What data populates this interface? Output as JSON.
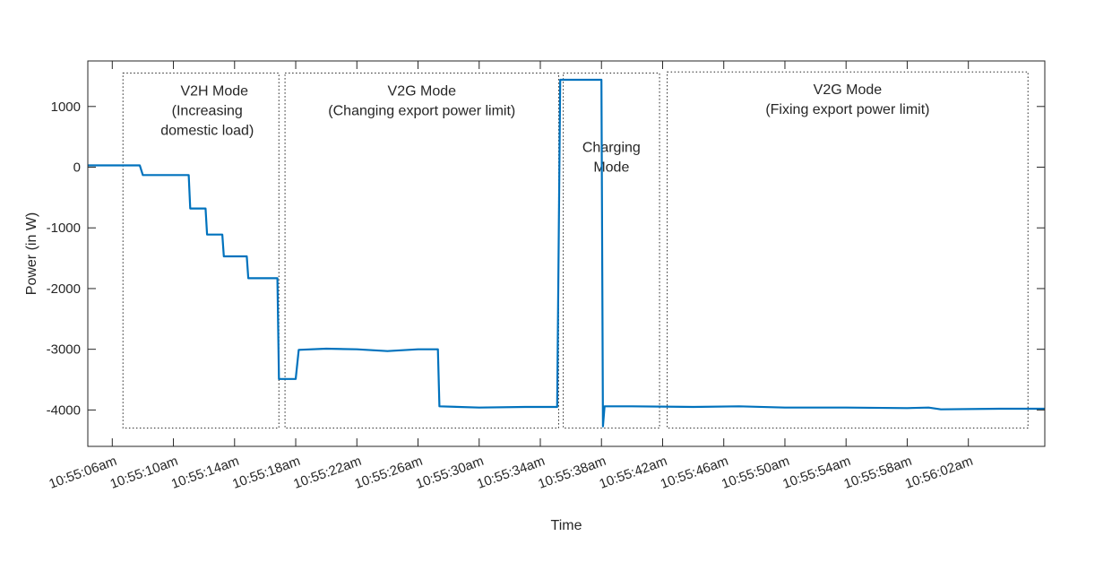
{
  "chart_data": {
    "type": "line",
    "xlabel": "Time",
    "ylabel": "Power (in W)",
    "x_range_seconds": [
      64.4,
      127.0
    ],
    "ylim": [
      -4600,
      1750
    ],
    "y_ticks": [
      1000,
      0,
      -1000,
      -2000,
      -3000,
      -4000
    ],
    "y_tick_labels": [
      "1000",
      "0",
      "-1000",
      "-2000",
      "-3000",
      "-4000"
    ],
    "x_ticks": [
      {
        "t": 66,
        "label": "10:55:06am"
      },
      {
        "t": 70,
        "label": "10:55:10am"
      },
      {
        "t": 74,
        "label": "10:55:14am"
      },
      {
        "t": 78,
        "label": "10:55:18am"
      },
      {
        "t": 82,
        "label": "10:55:22am"
      },
      {
        "t": 86,
        "label": "10:55:26am"
      },
      {
        "t": 90,
        "label": "10:55:30am"
      },
      {
        "t": 94,
        "label": "10:55:34am"
      },
      {
        "t": 98,
        "label": "10:55:38am"
      },
      {
        "t": 102,
        "label": "10:55:42am"
      },
      {
        "t": 106,
        "label": "10:55:46am"
      },
      {
        "t": 110,
        "label": "10:55:50am"
      },
      {
        "t": 114,
        "label": "10:55:54am"
      },
      {
        "t": 118,
        "label": "10:55:58am"
      },
      {
        "t": 122,
        "label": "10:56:02am"
      }
    ],
    "series": [
      {
        "color": "#0072BD",
        "points": [
          [
            64.4,
            30
          ],
          [
            67.8,
            30
          ],
          [
            68.0,
            -130
          ],
          [
            71.0,
            -130
          ],
          [
            71.1,
            -680
          ],
          [
            72.1,
            -680
          ],
          [
            72.2,
            -1110
          ],
          [
            73.2,
            -1110
          ],
          [
            73.3,
            -1470
          ],
          [
            74.8,
            -1470
          ],
          [
            74.9,
            -1830
          ],
          [
            76.8,
            -1830
          ],
          [
            76.9,
            -3490
          ],
          [
            78.0,
            -3490
          ],
          [
            78.2,
            -3010
          ],
          [
            80.0,
            -2990
          ],
          [
            82.0,
            -3000
          ],
          [
            84.0,
            -3030
          ],
          [
            86.0,
            -3000
          ],
          [
            87.3,
            -3000
          ],
          [
            87.4,
            -3940
          ],
          [
            90.0,
            -3960
          ],
          [
            93.0,
            -3950
          ],
          [
            95.1,
            -3950
          ],
          [
            95.3,
            1440
          ],
          [
            98.0,
            1440
          ],
          [
            98.1,
            -4270
          ],
          [
            98.2,
            -3940
          ],
          [
            100.0,
            -3940
          ],
          [
            104.0,
            -3950
          ],
          [
            107.0,
            -3940
          ],
          [
            110.0,
            -3960
          ],
          [
            114.0,
            -3960
          ],
          [
            118.0,
            -3970
          ],
          [
            119.4,
            -3960
          ],
          [
            120.2,
            -3990
          ],
          [
            124.0,
            -3980
          ],
          [
            127.0,
            -3980
          ]
        ]
      }
    ],
    "annotations": [
      {
        "t0": 66.7,
        "t1": 76.9,
        "y_top": 1550,
        "y_bottom": -4300,
        "lines": [
          "V2H Mode",
          "(Increasing",
          "domestic load)"
        ]
      },
      {
        "t0": 77.3,
        "t1": 95.2,
        "y_top": 1550,
        "y_bottom": -4300,
        "lines": [
          "V2G Mode",
          "(Changing export power limit)"
        ]
      },
      {
        "t0": 95.5,
        "t1": 101.8,
        "y_top": 1550,
        "y_bottom": -4300,
        "lines": [
          "Charging",
          "Mode"
        ]
      },
      {
        "t0": 102.3,
        "t1": 125.9,
        "y_top": 1570,
        "y_bottom": -4300,
        "lines": [
          "V2G Mode",
          "(Fixing export power limit)"
        ]
      }
    ]
  }
}
